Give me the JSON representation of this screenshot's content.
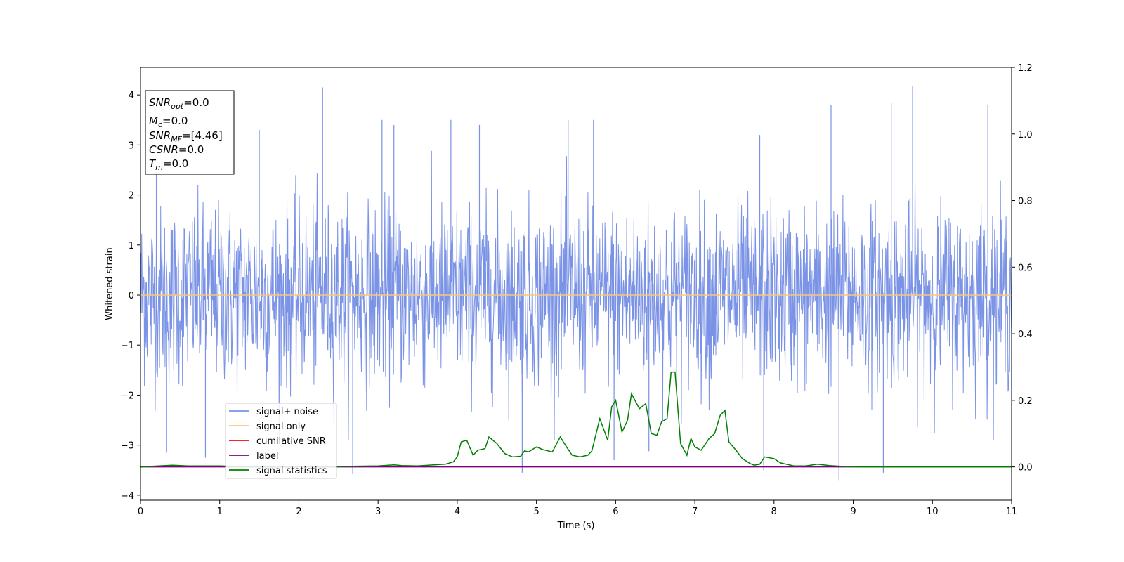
{
  "chart_data": {
    "type": "line",
    "xlabel": "Time (s)",
    "ylabel": "Whitened strain",
    "xlim": [
      0,
      11
    ],
    "ylim": [
      -4.1,
      4.55
    ],
    "y2lim": [
      -0.1,
      1.2
    ],
    "xticks": [
      0,
      1,
      2,
      3,
      4,
      5,
      6,
      7,
      8,
      9,
      10,
      11
    ],
    "yticks": [
      -4,
      -3,
      -2,
      -1,
      0,
      1,
      2,
      3,
      4
    ],
    "y2ticks": [
      0.0,
      0.2,
      0.4,
      0.6,
      0.8,
      1.0,
      1.2
    ],
    "y2tick_labels": [
      "0.0",
      "0.2",
      "0.4",
      "0.6",
      "0.8",
      "1.0",
      "1.2"
    ],
    "info_box": {
      "snr_opt": {
        "base": "SNR",
        "sub": "opt",
        "value": "=0.0"
      },
      "mc": {
        "base": "M",
        "sub": "c",
        "value": "=0.0"
      },
      "snr_mf": {
        "base": "SNR",
        "sub": "MF",
        "value": "=[4.46]"
      },
      "csnr": {
        "base": "CSNR",
        "value": "=0.0"
      },
      "tm": {
        "base": "T",
        "sub": "m",
        "value": "=0.0"
      }
    },
    "legend": {
      "placement": "lower-left",
      "entries": [
        {
          "label": "signal+ noise",
          "color": "#7b93e6"
        },
        {
          "label": "signal only",
          "color": "#f7c77a"
        },
        {
          "label": "cumilative SNR",
          "color": "#ff0000"
        },
        {
          "label": "label",
          "color": "#800080"
        },
        {
          "label": "signal statistics",
          "color": "#008000"
        }
      ]
    },
    "series": [
      {
        "name": "signal+ noise",
        "axis": "left",
        "color": "#7b93e6",
        "envelope": {
          "typical_amplitude": 1.6,
          "sample_rate_hz": 200
        },
        "prominent_peaks": [
          {
            "x": 2.3,
            "y": 4.15
          },
          {
            "x": 9.75,
            "y": 4.18
          },
          {
            "x": 10.7,
            "y": 3.8
          },
          {
            "x": 8.72,
            "y": 3.8
          },
          {
            "x": 9.48,
            "y": 3.85
          },
          {
            "x": 1.5,
            "y": 3.3
          },
          {
            "x": 3.05,
            "y": 3.5
          },
          {
            "x": 3.2,
            "y": 3.4
          },
          {
            "x": 3.92,
            "y": 3.5
          },
          {
            "x": 4.28,
            "y": 3.4
          },
          {
            "x": 5.4,
            "y": 3.5
          },
          {
            "x": 5.72,
            "y": 3.5
          },
          {
            "x": 7.82,
            "y": 3.2
          },
          {
            "x": 0.2,
            "y": 3.1
          }
        ],
        "prominent_troughs": [
          {
            "x": 8.82,
            "y": -3.7
          },
          {
            "x": 2.68,
            "y": -3.58
          },
          {
            "x": 4.82,
            "y": -3.55
          },
          {
            "x": 9.38,
            "y": -3.55
          },
          {
            "x": 0.33,
            "y": -3.15
          },
          {
            "x": 7.87,
            "y": -3.5
          },
          {
            "x": 0.82,
            "y": -3.25
          },
          {
            "x": 5.98,
            "y": -3.3
          },
          {
            "x": 6.42,
            "y": -3.12
          }
        ]
      },
      {
        "name": "signal only",
        "axis": "left",
        "color": "#f7c77a",
        "x": [
          0,
          11
        ],
        "y": [
          0,
          0
        ]
      },
      {
        "name": "label",
        "axis": "right",
        "color": "#800080",
        "x": [
          0,
          11
        ],
        "y": [
          0,
          0
        ]
      },
      {
        "name": "signal statistics",
        "axis": "right",
        "color": "#008000",
        "x": [
          0,
          0.4,
          0.6,
          1.0,
          1.5,
          2.0,
          2.5,
          3.0,
          3.2,
          3.25,
          3.3,
          3.5,
          3.7,
          3.85,
          3.95,
          4.0,
          4.05,
          4.12,
          4.2,
          4.26,
          4.35,
          4.4,
          4.5,
          4.6,
          4.7,
          4.8,
          4.85,
          4.9,
          5.0,
          5.08,
          5.2,
          5.3,
          5.38,
          5.45,
          5.55,
          5.65,
          5.7,
          5.8,
          5.9,
          5.95,
          6.0,
          6.08,
          6.15,
          6.2,
          6.3,
          6.38,
          6.45,
          6.52,
          6.58,
          6.65,
          6.7,
          6.75,
          6.82,
          6.9,
          6.95,
          7.0,
          7.08,
          7.18,
          7.25,
          7.32,
          7.38,
          7.43,
          7.52,
          7.6,
          7.7,
          7.75,
          7.82,
          7.88,
          8.0,
          8.08,
          8.25,
          8.4,
          8.55,
          8.7,
          8.9,
          9.1,
          9.5,
          10.0,
          11.0
        ],
        "y": [
          0.0,
          0.005,
          0.003,
          0.003,
          0.0,
          0.001,
          0.001,
          0.003,
          0.006,
          0.005,
          0.004,
          0.003,
          0.006,
          0.008,
          0.015,
          0.03,
          0.075,
          0.08,
          0.035,
          0.05,
          0.055,
          0.09,
          0.07,
          0.04,
          0.03,
          0.032,
          0.048,
          0.045,
          0.06,
          0.052,
          0.045,
          0.09,
          0.06,
          0.035,
          0.03,
          0.035,
          0.048,
          0.145,
          0.08,
          0.18,
          0.2,
          0.105,
          0.14,
          0.22,
          0.175,
          0.19,
          0.1,
          0.095,
          0.135,
          0.145,
          0.285,
          0.285,
          0.07,
          0.035,
          0.085,
          0.06,
          0.05,
          0.085,
          0.1,
          0.155,
          0.17,
          0.075,
          0.05,
          0.025,
          0.01,
          0.005,
          0.008,
          0.03,
          0.025,
          0.012,
          0.003,
          0.003,
          0.008,
          0.004,
          0.001,
          0.0,
          0.0,
          0.0,
          0.0
        ]
      }
    ]
  }
}
